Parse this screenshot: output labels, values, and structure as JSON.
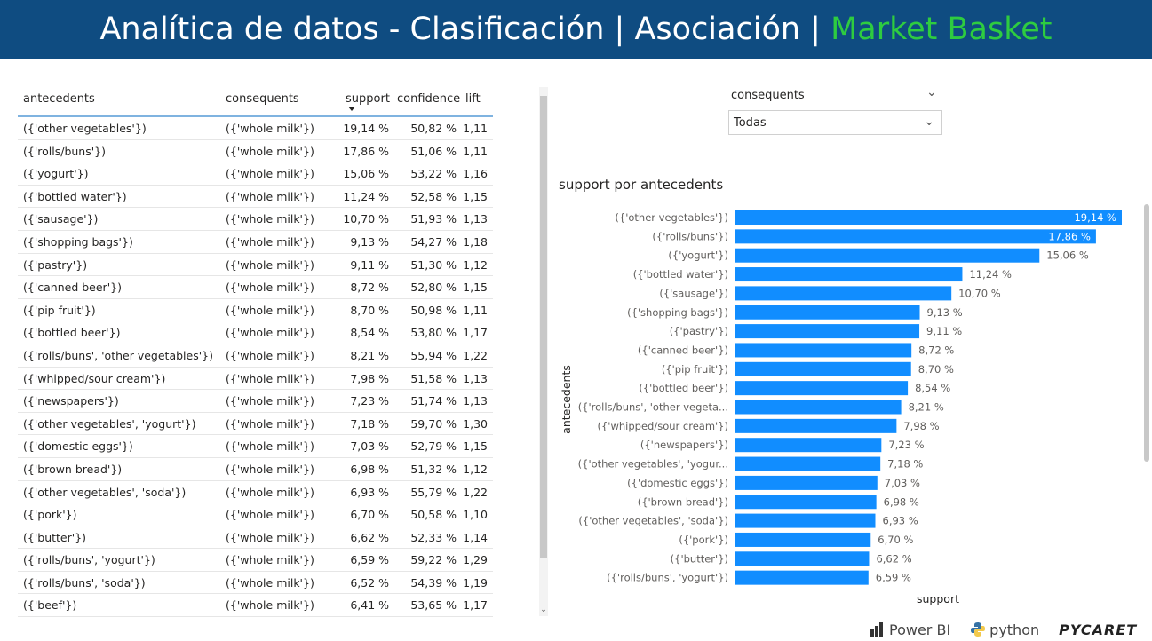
{
  "header": {
    "title_main": "Analítica de datos - Clasificación | Asociación | ",
    "title_accent": "Market Basket"
  },
  "table": {
    "columns": [
      "antecedents",
      "consequents",
      "support",
      "confidence",
      "lift"
    ],
    "sorted_by": "support",
    "rows": [
      [
        "({'other vegetables'})",
        "({'whole milk'})",
        "19,14 %",
        "50,82 %",
        "1,11"
      ],
      [
        "({'rolls/buns'})",
        "({'whole milk'})",
        "17,86 %",
        "51,06 %",
        "1,11"
      ],
      [
        "({'yogurt'})",
        "({'whole milk'})",
        "15,06 %",
        "53,22 %",
        "1,16"
      ],
      [
        "({'bottled water'})",
        "({'whole milk'})",
        "11,24 %",
        "52,58 %",
        "1,15"
      ],
      [
        "({'sausage'})",
        "({'whole milk'})",
        "10,70 %",
        "51,93 %",
        "1,13"
      ],
      [
        "({'shopping bags'})",
        "({'whole milk'})",
        "9,13 %",
        "54,27 %",
        "1,18"
      ],
      [
        "({'pastry'})",
        "({'whole milk'})",
        "9,11 %",
        "51,30 %",
        "1,12"
      ],
      [
        "({'canned beer'})",
        "({'whole milk'})",
        "8,72 %",
        "52,80 %",
        "1,15"
      ],
      [
        "({'pip fruit'})",
        "({'whole milk'})",
        "8,70 %",
        "50,98 %",
        "1,11"
      ],
      [
        "({'bottled beer'})",
        "({'whole milk'})",
        "8,54 %",
        "53,80 %",
        "1,17"
      ],
      [
        "({'rolls/buns', 'other vegetables'})",
        "({'whole milk'})",
        "8,21 %",
        "55,94 %",
        "1,22"
      ],
      [
        "({'whipped/sour cream'})",
        "({'whole milk'})",
        "7,98 %",
        "51,58 %",
        "1,13"
      ],
      [
        "({'newspapers'})",
        "({'whole milk'})",
        "7,23 %",
        "51,74 %",
        "1,13"
      ],
      [
        "({'other vegetables', 'yogurt'})",
        "({'whole milk'})",
        "7,18 %",
        "59,70 %",
        "1,30"
      ],
      [
        "({'domestic eggs'})",
        "({'whole milk'})",
        "7,03 %",
        "52,79 %",
        "1,15"
      ],
      [
        "({'brown bread'})",
        "({'whole milk'})",
        "6,98 %",
        "51,32 %",
        "1,12"
      ],
      [
        "({'other vegetables', 'soda'})",
        "({'whole milk'})",
        "6,93 %",
        "55,79 %",
        "1,22"
      ],
      [
        "({'pork'})",
        "({'whole milk'})",
        "6,70 %",
        "50,58 %",
        "1,10"
      ],
      [
        "({'butter'})",
        "({'whole milk'})",
        "6,62 %",
        "52,33 %",
        "1,14"
      ],
      [
        "({'rolls/buns', 'yogurt'})",
        "({'whole milk'})",
        "6,59 %",
        "59,22 %",
        "1,29"
      ],
      [
        "({'rolls/buns', 'soda'})",
        "({'whole milk'})",
        "6,52 %",
        "54,39 %",
        "1,19"
      ],
      [
        "({'beef'})",
        "({'whole milk'})",
        "6,41 %",
        "53,65 %",
        "1,17"
      ]
    ]
  },
  "slicer": {
    "label": "consequents",
    "value": "Todas"
  },
  "chart_data": {
    "type": "bar",
    "orientation": "horizontal",
    "title": "support por antecedents",
    "xlabel": "support",
    "ylabel": "antecedents",
    "categories": [
      "({'other vegetables'})",
      "({'rolls/buns'})",
      "({'yogurt'})",
      "({'bottled water'})",
      "({'sausage'})",
      "({'shopping bags'})",
      "({'pastry'})",
      "({'canned beer'})",
      "({'pip fruit'})",
      "({'bottled beer'})",
      "({'rolls/buns', 'other vegeta...",
      "({'whipped/sour cream'})",
      "({'newspapers'})",
      "({'other vegetables', 'yogur...",
      "({'domestic eggs'})",
      "({'brown bread'})",
      "({'other vegetables', 'soda'})",
      "({'pork'})",
      "({'butter'})",
      "({'rolls/buns', 'yogurt'})"
    ],
    "values": [
      19.14,
      17.86,
      15.06,
      11.24,
      10.7,
      9.13,
      9.11,
      8.72,
      8.7,
      8.54,
      8.21,
      7.98,
      7.23,
      7.18,
      7.03,
      6.98,
      6.93,
      6.7,
      6.62,
      6.59
    ],
    "labels": [
      "19,14 %",
      "17,86 %",
      "15,06 %",
      "11,24 %",
      "10,70 %",
      "9,13 %",
      "9,11 %",
      "8,72 %",
      "8,70 %",
      "8,54 %",
      "8,21 %",
      "7,98 %",
      "7,23 %",
      "7,18 %",
      "7,03 %",
      "6,98 %",
      "6,93 %",
      "6,70 %",
      "6,62 %",
      "6,59 %"
    ],
    "color": "#118dff",
    "xlim": [
      0,
      19.14
    ],
    "grid": false,
    "legend": "none"
  },
  "footer": {
    "powerbi": "Power BI",
    "python": "python",
    "pycaret": "PYCARET"
  }
}
